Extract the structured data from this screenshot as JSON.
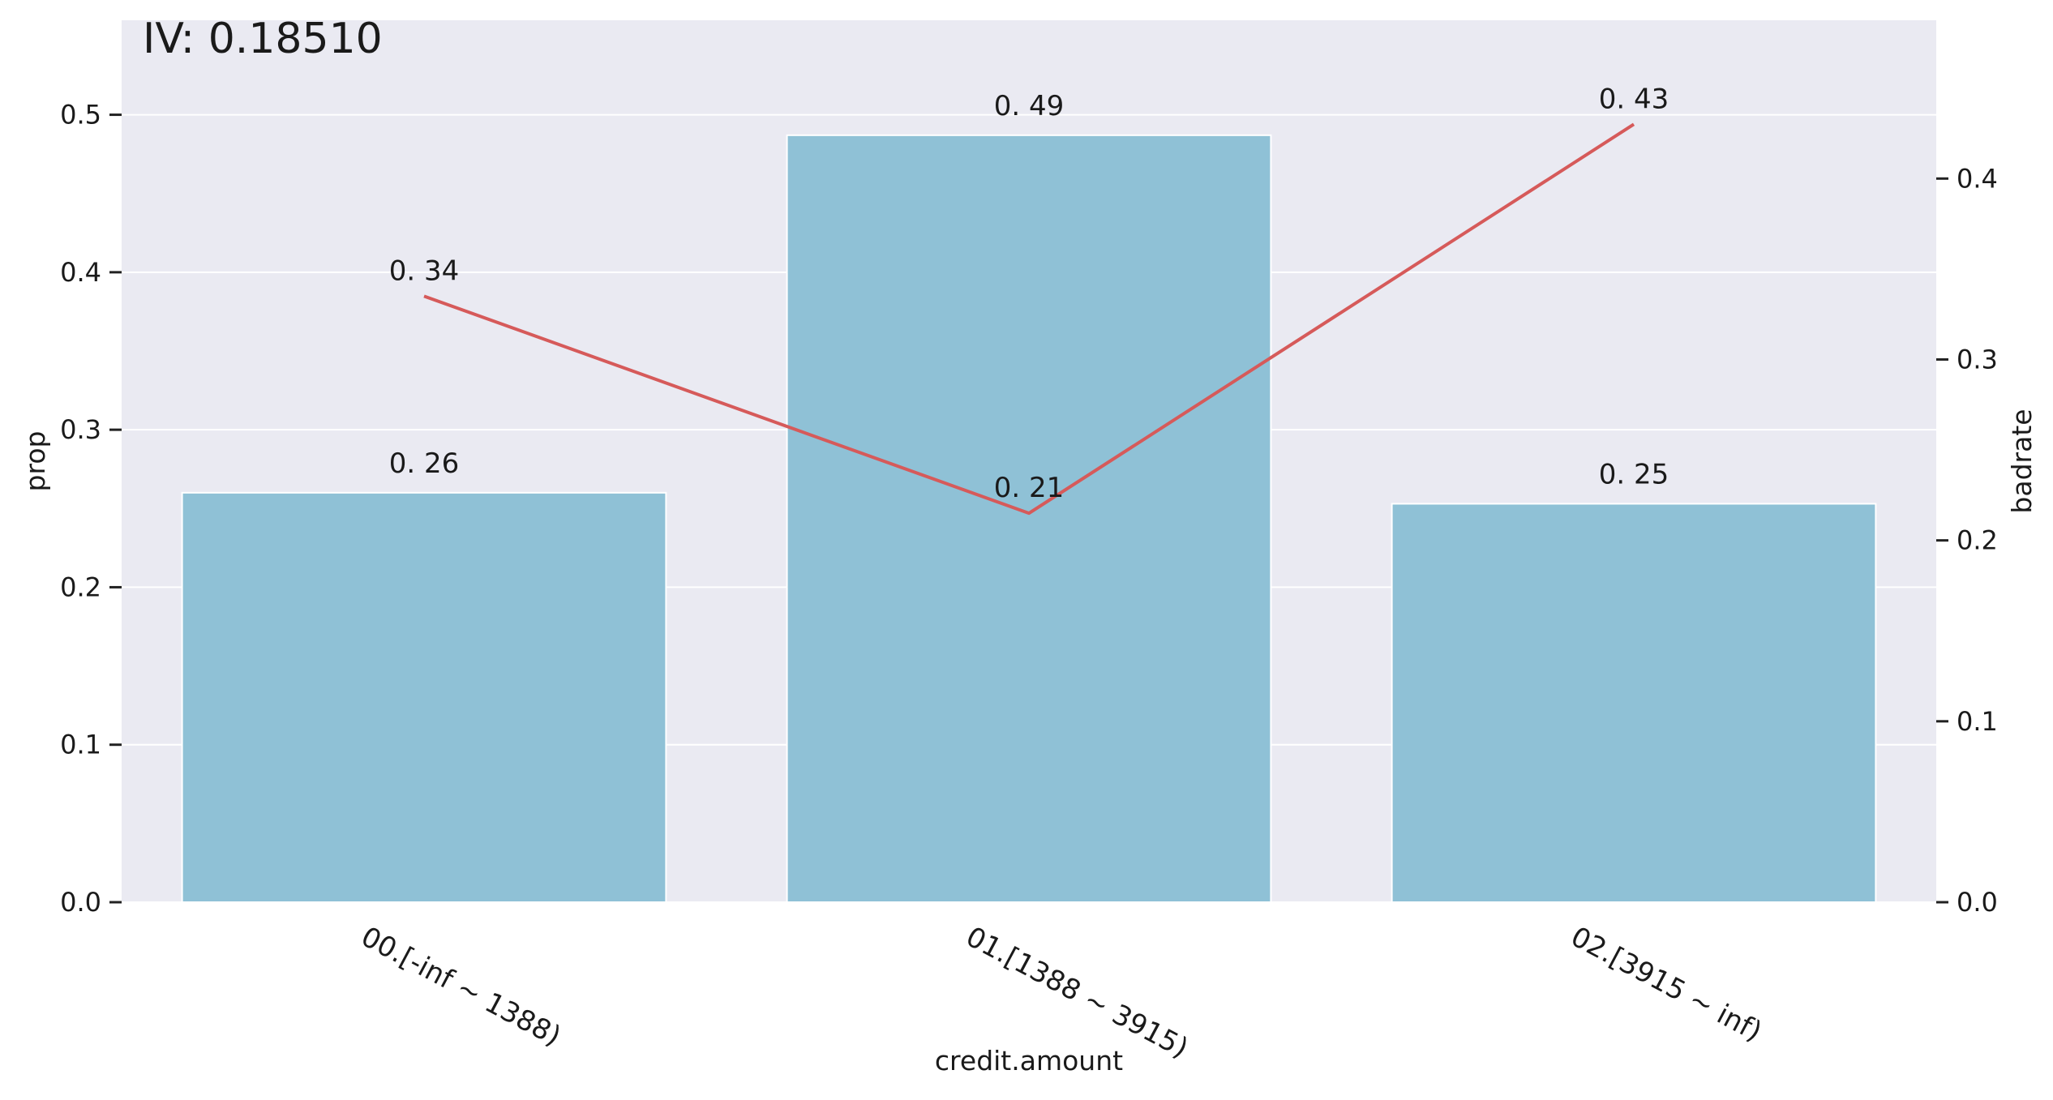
{
  "chart_data": {
    "type": "bar",
    "title": "IV:  0.18510",
    "xlabel": "credit.amount",
    "ylabel": "prop",
    "y2label": "badrate",
    "categories": [
      "00.[-inf ~ 1388)",
      "01.[1388 ~ 3915)",
      "02.[3915 ~ inf)"
    ],
    "series": [
      {
        "type": "bar",
        "axis": "left",
        "values": [
          0.26,
          0.487,
          0.253
        ],
        "labels": [
          "0. 26",
          "0. 49",
          "0. 25"
        ]
      },
      {
        "type": "line",
        "axis": "right",
        "values": [
          0.335,
          0.215,
          0.43
        ],
        "labels": [
          "0. 34",
          "0. 21",
          "0. 43"
        ]
      }
    ],
    "ylim": [
      0,
      0.56
    ],
    "y2lim": [
      0,
      0.4875
    ],
    "yticks": [
      0.0,
      0.1,
      0.2,
      0.3,
      0.4,
      0.5
    ],
    "y2ticks": [
      0.0,
      0.1,
      0.2,
      0.3,
      0.4
    ],
    "ytick_labels": [
      "0.0",
      "0.1",
      "0.2",
      "0.3",
      "0.4",
      "0.5"
    ],
    "y2tick_labels": [
      "0.0",
      "0.1",
      "0.2",
      "0.3",
      "0.4"
    ],
    "grid": true,
    "colors": {
      "background": "#eaeaf2",
      "grid": "#ffffff",
      "bar": "#8fc1d6",
      "line": "#d65a5a"
    }
  }
}
